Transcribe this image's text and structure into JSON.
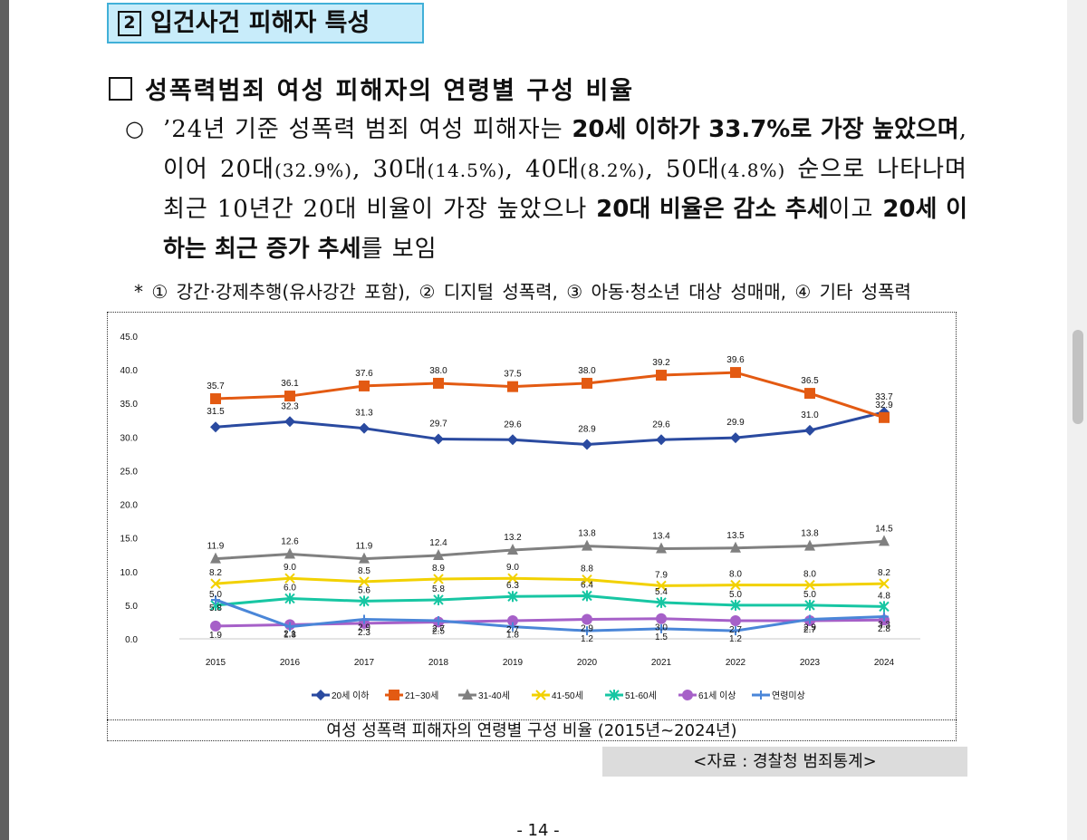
{
  "section": {
    "number": "2",
    "title": "입건사건 피해자 특성"
  },
  "subsection": {
    "title": "성폭력범죄 여성 피해자의 연령별 구성 비율"
  },
  "paragraph": {
    "bullet": "○",
    "t1": "’24년 기준 성폭력 범죄 여성 피해자는 ",
    "b1": "20세 이하가 33.7%로 가장 높았으며",
    "t2": ", 이어 20대",
    "s1": "(32.9%)",
    "t3": ", 30대",
    "s2": "(14.5%)",
    "t4": ", 40대",
    "s3": "(8.2%)",
    "t5": ", 50대",
    "s4": "(4.8%)",
    "t6": " 순으로 나타나며 최근 10년간 20대 비율이 가장 높았으나 ",
    "b2": "20대 비율은 감소 추세",
    "t7": "이고 ",
    "b3": "20세 이하는 최근 증가 추세",
    "t8": "를 보임"
  },
  "footnote": "* ① 강간·강제추행(유사강간 포함), ② 디지털 성폭력, ③ 아동·청소년 대상 성매매, ④ 기타 성폭력",
  "chart_data": {
    "type": "line",
    "title": "여성 성폭력 피해자의 연령별 구성 비율 (2015년~2024년)",
    "xlabel": "",
    "ylabel": "",
    "ylim": [
      0,
      45
    ],
    "yticks": [
      "0.0",
      "5.0",
      "10.0",
      "15.0",
      "20.0",
      "25.0",
      "30.0",
      "35.0",
      "40.0",
      "45.0"
    ],
    "categories": [
      "2015",
      "2016",
      "2017",
      "2018",
      "2019",
      "2020",
      "2021",
      "2022",
      "2023",
      "2024"
    ],
    "legend_position": "bottom",
    "series": [
      {
        "name": "20세 이하",
        "color": "#2a4aa0",
        "marker": "diamond",
        "values": [
          31.5,
          32.3,
          31.3,
          29.7,
          29.6,
          28.9,
          29.6,
          29.9,
          31.0,
          33.7
        ],
        "labels": [
          "31.5",
          "32.3",
          "31.3",
          "29.7",
          "29.6",
          "28.9",
          "29.6",
          "29.9",
          "31.0",
          "33.7"
        ]
      },
      {
        "name": "21~30세",
        "color": "#e35a12",
        "marker": "square",
        "values": [
          35.7,
          36.1,
          37.6,
          38.0,
          37.5,
          38.0,
          39.2,
          39.6,
          36.5,
          32.9
        ],
        "labels": [
          "35.7",
          "36.1",
          "37.6",
          "38.0",
          "37.5",
          "38.0",
          "39.2",
          "39.6",
          "36.5",
          "32.9"
        ]
      },
      {
        "name": "31-40세",
        "color": "#808080",
        "marker": "triangle",
        "values": [
          11.9,
          12.6,
          11.9,
          12.4,
          13.2,
          13.8,
          13.4,
          13.5,
          13.8,
          14.5
        ],
        "labels": [
          "11.9",
          "12.6",
          "11.9",
          "12.4",
          "13.2",
          "13.8",
          "13.4",
          "13.5",
          "13.8",
          "14.5"
        ]
      },
      {
        "name": "41-50세",
        "color": "#f2d100",
        "marker": "x",
        "values": [
          8.2,
          9.0,
          8.5,
          8.9,
          9.0,
          8.8,
          7.9,
          8.0,
          8.0,
          8.2
        ],
        "labels": [
          "8.2",
          "9.0",
          "8.5",
          "8.9",
          "9.0",
          "8.8",
          "7.9",
          "8.0",
          "8.0",
          "8.2"
        ]
      },
      {
        "name": "51-60세",
        "color": "#17c6a3",
        "marker": "star",
        "values": [
          5.0,
          6.0,
          5.6,
          5.8,
          6.3,
          6.4,
          5.4,
          5.0,
          5.0,
          4.8
        ],
        "labels": [
          "5.0",
          "6.0",
          "5.6",
          "5.8",
          "6.3",
          "6.4",
          "5.4",
          "5.0",
          "5.0",
          "4.8"
        ]
      },
      {
        "name": "61세 이상",
        "color": "#a660c8",
        "marker": "circle",
        "values": [
          1.9,
          2.1,
          2.3,
          2.5,
          2.7,
          2.9,
          3.0,
          2.7,
          2.7,
          2.8
        ],
        "labels": [
          "1.9",
          "2.1",
          "2.3",
          "2.5",
          "2.7",
          "2.9",
          "3.0",
          "2.7",
          "2.7",
          "2.8"
        ]
      },
      {
        "name": "연령미상",
        "color": "#4a86d8",
        "marker": "plus",
        "values": [
          5.8,
          1.8,
          2.9,
          2.7,
          1.8,
          1.2,
          1.5,
          1.2,
          2.9,
          3.3
        ],
        "labels": [
          "5.8",
          "1.8",
          "2.9",
          "2.7",
          "1.8",
          "1.2",
          "1.5",
          "1.2",
          "2.9",
          "3.3"
        ]
      }
    ]
  },
  "source": "<자료 : 경찰청 범죄통계>",
  "page_number": "- 14 -"
}
